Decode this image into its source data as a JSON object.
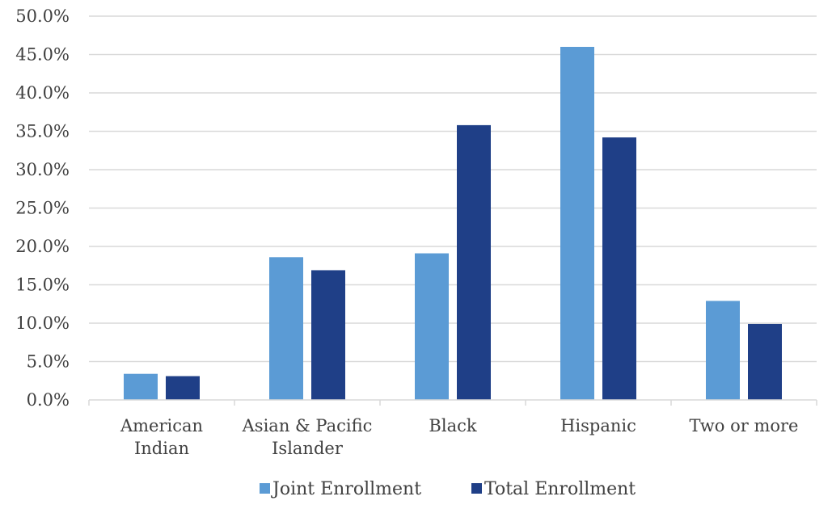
{
  "chart_data": {
    "type": "bar",
    "categories": [
      [
        "American",
        "Indian"
      ],
      [
        "Asian & Pacific",
        "Islander"
      ],
      [
        "Black"
      ],
      [
        "Hispanic"
      ],
      [
        "Two or more"
      ]
    ],
    "series": [
      {
        "name": "Joint Enrollment",
        "color": "#5b9bd5",
        "values": [
          3.4,
          18.6,
          19.1,
          46.0,
          12.9
        ]
      },
      {
        "name": "Total Enrollment",
        "color": "#1f3f87",
        "values": [
          3.1,
          16.9,
          35.8,
          34.2,
          9.9
        ]
      }
    ],
    "yticks": [
      "0.0%",
      "5.0%",
      "10.0%",
      "15.0%",
      "20.0%",
      "25.0%",
      "30.0%",
      "35.0%",
      "40.0%",
      "45.0%",
      "50.0%"
    ],
    "ylim": [
      0,
      50
    ],
    "grid": true,
    "legend_position": "bottom"
  }
}
